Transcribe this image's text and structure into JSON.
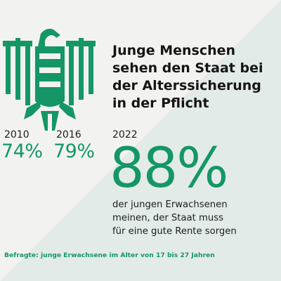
{
  "headline": "Junge Menschen\nsehen den Staat bei\nder Alterssicherung\nin der Pflicht",
  "stats": [
    {
      "year": "2010",
      "value": "74%"
    },
    {
      "year": "2016",
      "value": "79%"
    },
    {
      "year": "2022",
      "value": "88%"
    }
  ],
  "description": "der jungen Erwachsenen\nmeinen, der Staat muss\nfür eine gute Rente sorgen",
  "source": "Befragte: junge Erwachsene im Alter von 17 bis 27 Jahren",
  "colors": {
    "accent": "#149764",
    "background": "#f2f3f1",
    "diagonal": "#e3ebe8",
    "text": "#151515"
  },
  "icons": {
    "emblem": "federal-eagle-icon"
  }
}
